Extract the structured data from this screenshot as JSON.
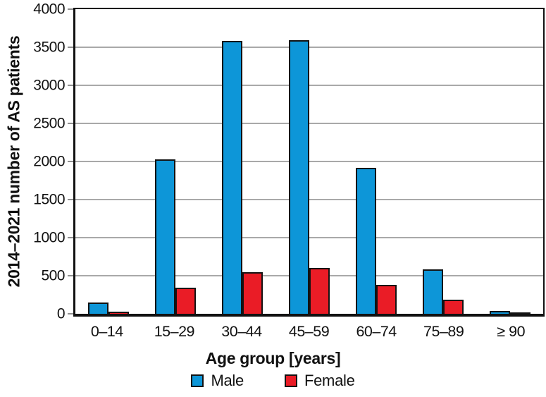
{
  "chart_data": {
    "type": "bar",
    "title": "",
    "categories": [
      "0–14",
      "15–29",
      "30–44",
      "45–59",
      "60–74",
      "75–89",
      "≥ 90"
    ],
    "series": [
      {
        "name": "Male",
        "color": "#0d96d8",
        "values": [
          145,
          2030,
          3580,
          3590,
          1920,
          585,
          35
        ]
      },
      {
        "name": "Female",
        "color": "#ea1c26",
        "values": [
          30,
          345,
          545,
          600,
          380,
          185,
          5
        ]
      }
    ],
    "xlabel": "Age group [years]",
    "ylabel": "2014–2021 number of AS patients",
    "ylim": [
      0,
      4000
    ],
    "ytick_step": 500,
    "yticks": [
      0,
      500,
      1000,
      1500,
      2000,
      2500,
      3000,
      3500,
      4000
    ],
    "grid": "horizontal",
    "legend_position": "bottom"
  },
  "styles": {
    "background": "#ffffff",
    "axis_color": "#111111",
    "bar_border_color": "#131313",
    "gridline_color": "#a9a9a9",
    "text_color": "#111111"
  }
}
